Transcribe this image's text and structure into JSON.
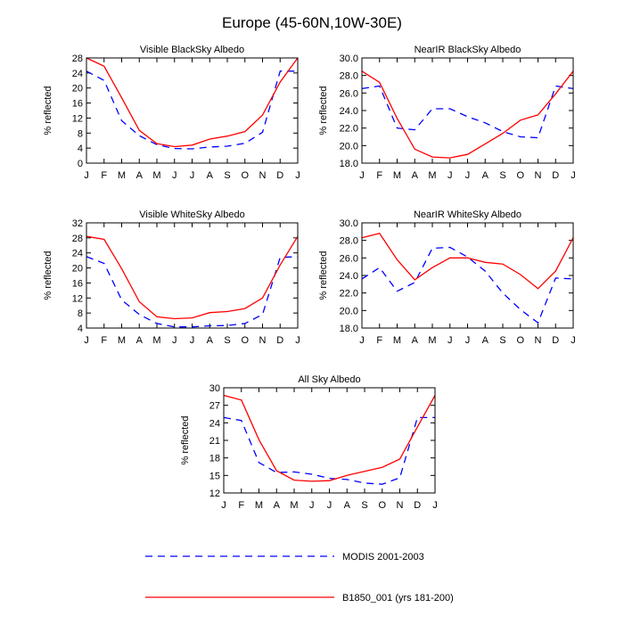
{
  "figure": {
    "title": "Europe (45-60N,10W-30E)",
    "months": [
      "J",
      "F",
      "M",
      "A",
      "M",
      "J",
      "J",
      "A",
      "S",
      "O",
      "N",
      "D",
      "J"
    ]
  },
  "legend": {
    "items": [
      {
        "label": "MODIS 2001-2003",
        "color": "#0000ff",
        "dash": true
      },
      {
        "label": "B1850_001 (yrs 181-200)",
        "color": "#ff0000",
        "dash": false
      }
    ]
  },
  "colors": {
    "modis": "#0000ff",
    "model": "#ff0000"
  },
  "chart_data": [
    {
      "type": "line",
      "title": "Visible BlackSky Albedo",
      "ylabel": "% reflected",
      "categories": [
        "J",
        "F",
        "M",
        "A",
        "M",
        "J",
        "J",
        "A",
        "S",
        "O",
        "N",
        "D",
        "J"
      ],
      "ylim": [
        0,
        28
      ],
      "yticks": [
        0,
        4,
        8,
        12,
        16,
        20,
        24,
        28
      ],
      "ytick_decimals": 0,
      "series": [
        {
          "name": "MODIS 2001-2003",
          "values": [
            24.5,
            22.0,
            11.3,
            7.3,
            4.9,
            3.9,
            3.8,
            4.3,
            4.5,
            5.3,
            8.2,
            24.5,
            24.5
          ]
        },
        {
          "name": "B1850_001 (yrs 181-200)",
          "values": [
            28.0,
            25.8,
            17.4,
            8.7,
            5.2,
            4.4,
            4.8,
            6.4,
            7.2,
            8.4,
            12.8,
            21.6,
            28.0
          ]
        }
      ]
    },
    {
      "type": "line",
      "title": "NearIR BlackSky Albedo",
      "ylabel": "% reflected",
      "categories": [
        "J",
        "F",
        "M",
        "A",
        "M",
        "J",
        "J",
        "A",
        "S",
        "O",
        "N",
        "D",
        "J"
      ],
      "ylim": [
        18,
        30
      ],
      "yticks": [
        18,
        20,
        22,
        24,
        26,
        28,
        30
      ],
      "ytick_decimals": 1,
      "series": [
        {
          "name": "MODIS 2001-2003",
          "values": [
            26.5,
            26.8,
            22.0,
            21.8,
            24.2,
            24.2,
            23.3,
            22.6,
            21.6,
            21.0,
            20.9,
            26.8,
            26.5
          ]
        },
        {
          "name": "B1850_001 (yrs 181-200)",
          "values": [
            28.5,
            27.2,
            23.1,
            19.6,
            18.7,
            18.6,
            19.0,
            20.2,
            21.4,
            22.9,
            23.5,
            25.9,
            28.5
          ]
        }
      ]
    },
    {
      "type": "line",
      "title": "Visible WhiteSky Albedo",
      "ylabel": "% reflected",
      "categories": [
        "J",
        "F",
        "M",
        "A",
        "M",
        "J",
        "J",
        "A",
        "S",
        "O",
        "N",
        "D",
        "J"
      ],
      "ylim": [
        4,
        32
      ],
      "yticks": [
        4,
        8,
        12,
        16,
        20,
        24,
        28,
        32
      ],
      "ytick_decimals": 0,
      "series": [
        {
          "name": "MODIS 2001-2003",
          "values": [
            23.0,
            21.2,
            11.5,
            7.6,
            5.2,
            4.3,
            4.3,
            4.6,
            4.7,
            5.2,
            7.6,
            22.8,
            23.0
          ]
        },
        {
          "name": "B1850_001 (yrs 181-200)",
          "values": [
            28.4,
            27.6,
            19.8,
            11.0,
            7.0,
            6.5,
            6.7,
            8.1,
            8.4,
            9.2,
            12.0,
            20.8,
            28.4
          ]
        }
      ]
    },
    {
      "type": "line",
      "title": "NearIR WhiteSky Albedo",
      "ylabel": "% reflected",
      "categories": [
        "J",
        "F",
        "M",
        "A",
        "M",
        "J",
        "J",
        "A",
        "S",
        "O",
        "N",
        "D",
        "J"
      ],
      "ylim": [
        18,
        30
      ],
      "yticks": [
        18,
        20,
        22,
        24,
        26,
        28,
        30
      ],
      "ytick_decimals": 1,
      "series": [
        {
          "name": "MODIS 2001-2003",
          "values": [
            23.6,
            24.9,
            22.2,
            23.2,
            27.1,
            27.2,
            26.1,
            24.5,
            22.0,
            20.1,
            18.6,
            23.7,
            23.6
          ]
        },
        {
          "name": "B1850_001 (yrs 181-200)",
          "values": [
            28.3,
            28.8,
            25.8,
            23.5,
            24.9,
            26.0,
            26.0,
            25.5,
            25.3,
            24.1,
            22.5,
            24.5,
            28.3
          ]
        }
      ]
    },
    {
      "type": "line",
      "title": "All Sky Albedo",
      "ylabel": "% reflected",
      "categories": [
        "J",
        "F",
        "M",
        "A",
        "M",
        "J",
        "J",
        "A",
        "S",
        "O",
        "N",
        "D",
        "J"
      ],
      "ylim": [
        12,
        30
      ],
      "yticks": [
        12,
        15,
        18,
        21,
        24,
        27,
        30
      ],
      "ytick_decimals": 0,
      "series": [
        {
          "name": "MODIS 2001-2003",
          "values": [
            24.9,
            24.4,
            17.2,
            15.5,
            15.6,
            15.2,
            14.5,
            14.3,
            13.7,
            13.5,
            14.6,
            24.9,
            24.9
          ]
        },
        {
          "name": "B1850_001 (yrs 181-200)",
          "values": [
            28.7,
            27.9,
            21.1,
            15.8,
            14.2,
            14.0,
            14.1,
            15.0,
            15.7,
            16.4,
            17.8,
            23.3,
            28.7
          ]
        }
      ]
    }
  ]
}
